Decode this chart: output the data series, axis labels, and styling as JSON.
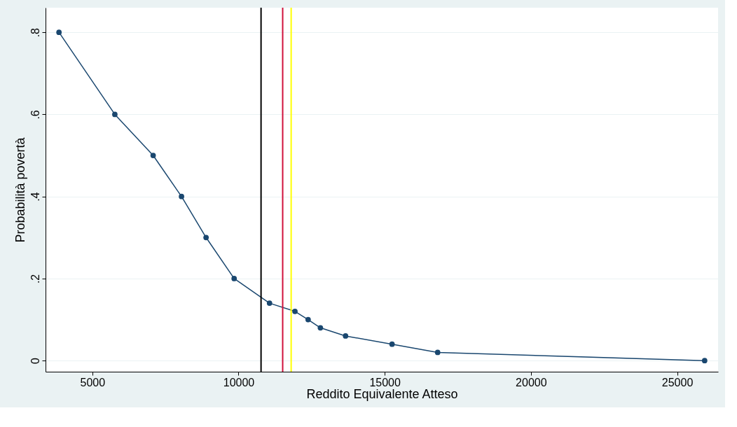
{
  "chart_data": {
    "type": "line",
    "xlabel": "Reddito Equivalente Atteso",
    "ylabel": "Probabilità povertà",
    "x": [
      3860,
      5770,
      7080,
      8050,
      8890,
      9850,
      11060,
      11930,
      12380,
      12800,
      13660,
      15250,
      16810,
      25940
    ],
    "series": [
      {
        "color": "#1a476f",
        "values": [
          0.8,
          0.6,
          0.5,
          0.4,
          0.3,
          0.2,
          0.14,
          0.12,
          0.1,
          0.08,
          0.06,
          0.04,
          0.02,
          0.0
        ]
      }
    ],
    "xlim": [
      3400,
      26400
    ],
    "ylim": [
      -0.027,
      0.86
    ],
    "xticks": [
      5000,
      10000,
      15000,
      20000,
      25000
    ],
    "yticks": [
      {
        "value": 0,
        "label": "0"
      },
      {
        "value": 0.2,
        "label": ".2"
      },
      {
        "value": 0.4,
        "label": ".4"
      },
      {
        "value": 0.6,
        "label": ".6"
      },
      {
        "value": 0.8,
        "label": ".8"
      }
    ],
    "ref_lines": [
      {
        "axis": "x",
        "value": 10770,
        "color": "#000000"
      },
      {
        "axis": "x",
        "value": 11510,
        "color": "#d0103a"
      },
      {
        "axis": "x",
        "value": 11800,
        "color": "#ffff00"
      }
    ],
    "grid": "y",
    "marker": "circle",
    "line_style": "solid"
  }
}
